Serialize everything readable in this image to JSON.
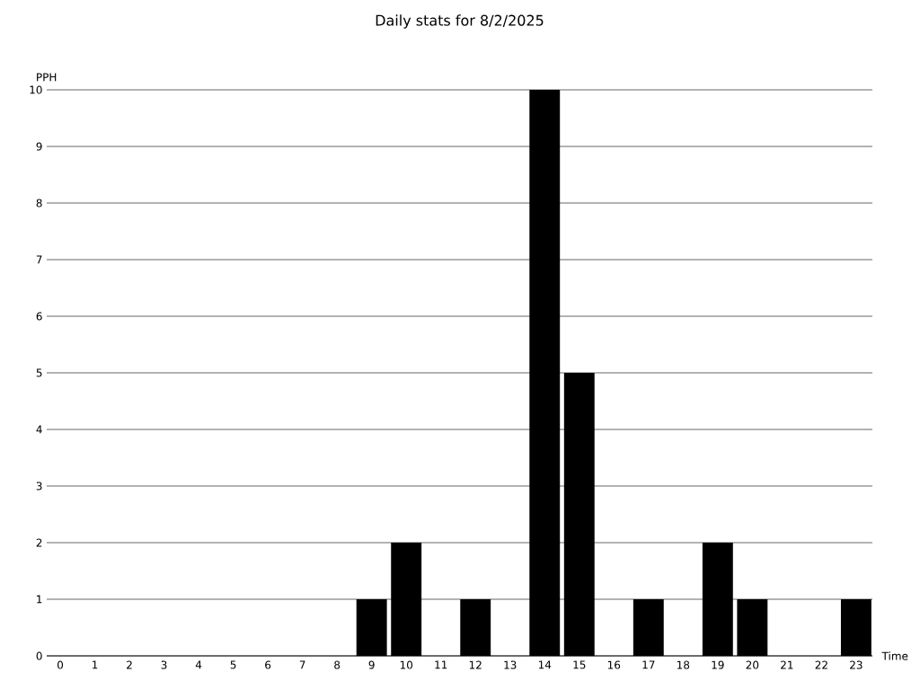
{
  "chart_data": {
    "type": "bar",
    "title": "Daily stats for 8/2/2025",
    "xlabel": "Time",
    "ylabel": "PPH",
    "categories": [
      "0",
      "1",
      "2",
      "3",
      "4",
      "5",
      "6",
      "7",
      "8",
      "9",
      "10",
      "11",
      "12",
      "13",
      "14",
      "15",
      "16",
      "17",
      "18",
      "19",
      "20",
      "21",
      "22",
      "23"
    ],
    "values": [
      0,
      0,
      0,
      0,
      0,
      0,
      0,
      0,
      0,
      1,
      2,
      0,
      1,
      0,
      10,
      5,
      0,
      1,
      0,
      2,
      1,
      0,
      0,
      1
    ],
    "color": "#000000",
    "ylim": [
      0,
      10
    ],
    "yticks": [
      0,
      1,
      2,
      3,
      4,
      5,
      6,
      7,
      8,
      9,
      10
    ],
    "grid": "y"
  }
}
